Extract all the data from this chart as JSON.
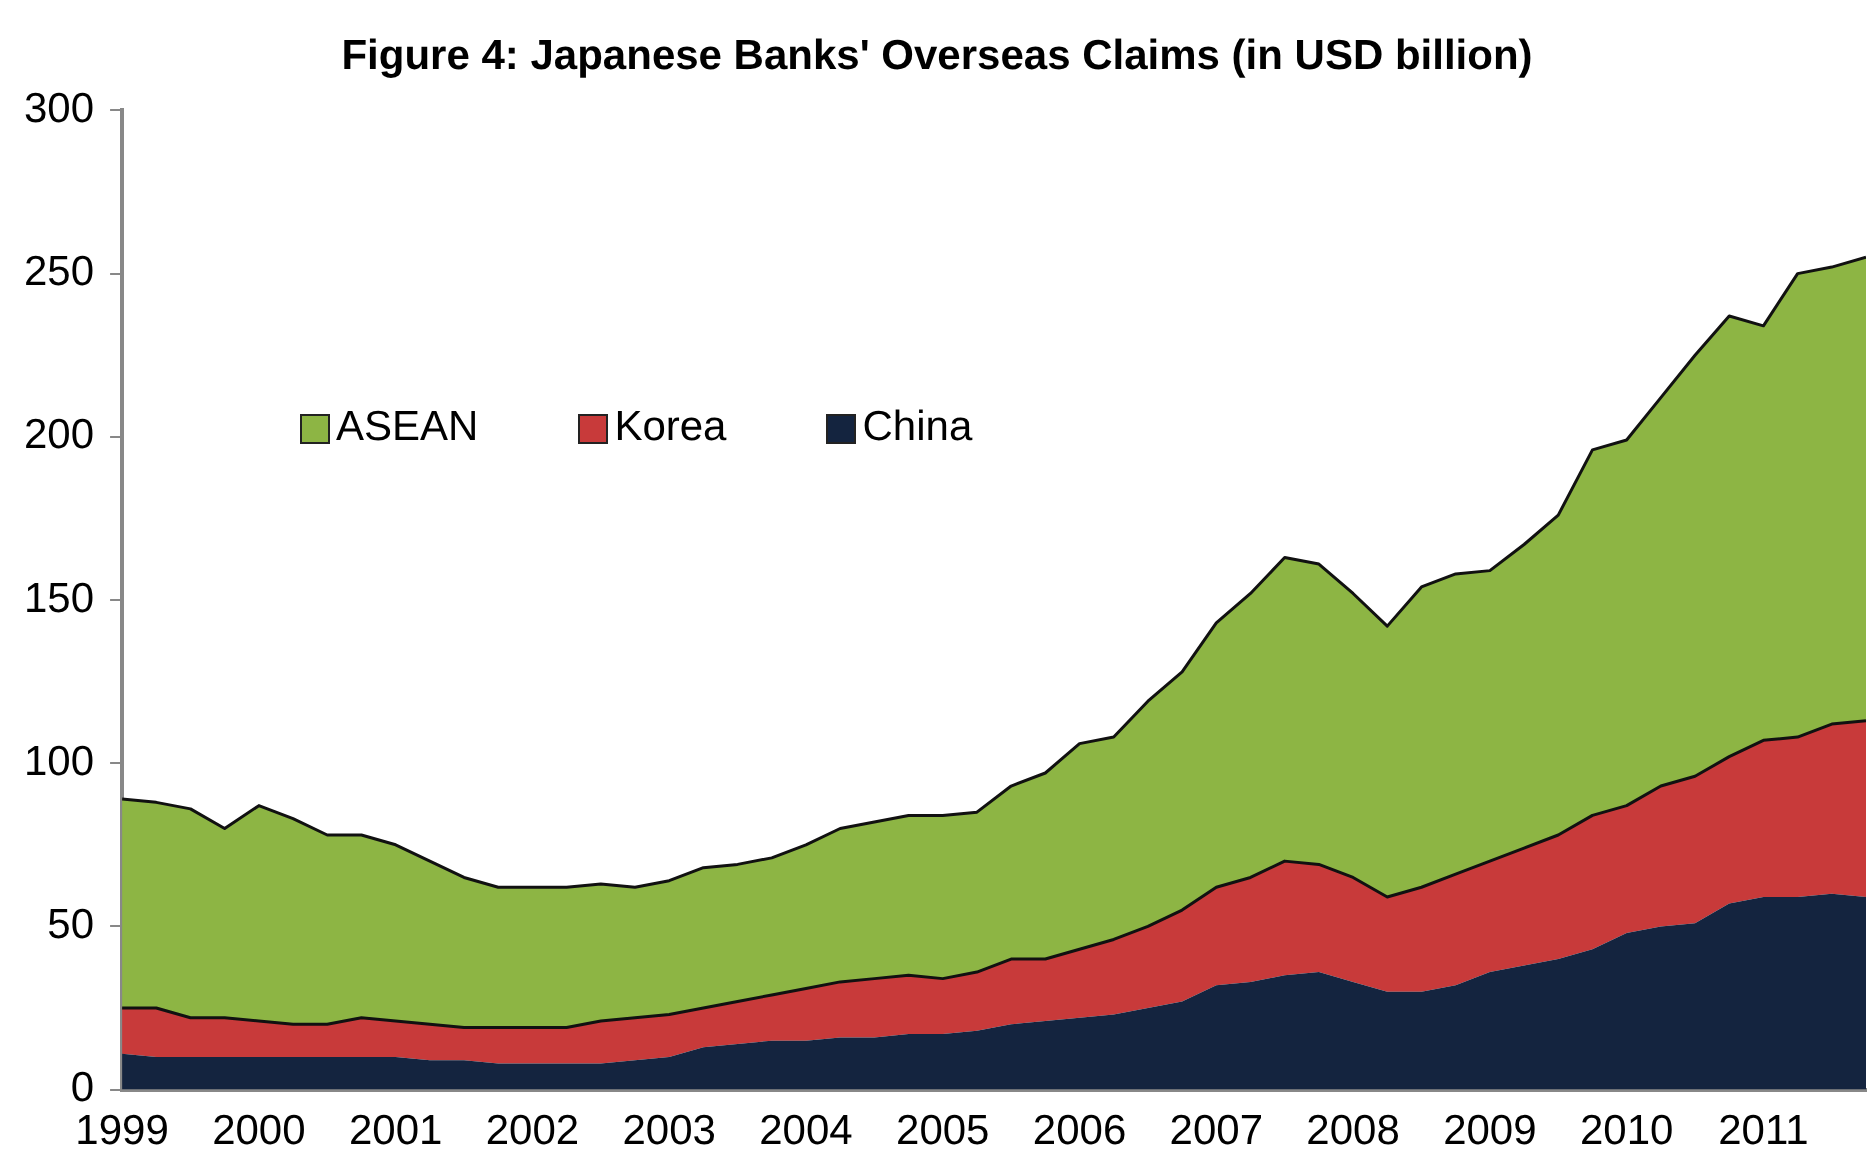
{
  "chart_data": {
    "type": "area",
    "title": "Figure 4: Japanese Banks' Overseas Claims (in USD billion)",
    "stacked": true,
    "legend": "top left",
    "grid": false,
    "x": [
      1999,
      1999.25,
      1999.5,
      1999.75,
      2000,
      2000.25,
      2000.5,
      2000.75,
      2001,
      2001.25,
      2001.5,
      2001.75,
      2002,
      2002.25,
      2002.5,
      2002.75,
      2003,
      2003.25,
      2003.5,
      2003.75,
      2004,
      2004.25,
      2004.5,
      2004.75,
      2005,
      2005.25,
      2005.5,
      2005.75,
      2006,
      2006.25,
      2006.5,
      2006.75,
      2007,
      2007.25,
      2007.5,
      2007.75,
      2008,
      2008.25,
      2008.5,
      2008.75,
      2009,
      2009.25,
      2009.5,
      2009.75,
      2010,
      2010.25,
      2010.5,
      2010.75,
      2011,
      2011.25,
      2011.5,
      2011.75
    ],
    "xlim": [
      1999,
      2011.75
    ],
    "xticks": [
      1999,
      2000,
      2001,
      2002,
      2003,
      2004,
      2005,
      2006,
      2007,
      2008,
      2009,
      2010,
      2011
    ],
    "ylim": [
      0,
      300
    ],
    "yticks": [
      0,
      50,
      100,
      150,
      200,
      250,
      300
    ],
    "series": [
      {
        "name": "China",
        "color": "#14243f",
        "values": [
          11,
          10,
          10,
          10,
          10,
          10,
          10,
          10,
          10,
          9,
          9,
          8,
          8,
          8,
          8,
          9,
          10,
          13,
          14,
          15,
          15,
          16,
          16,
          17,
          17,
          18,
          20,
          21,
          22,
          23,
          25,
          27,
          32,
          33,
          35,
          36,
          33,
          30,
          30,
          32,
          36,
          38,
          40,
          43,
          48,
          50,
          51,
          57,
          59,
          59,
          60,
          59
        ]
      },
      {
        "name": "Korea",
        "color": "#c83a3a",
        "values": [
          14,
          15,
          12,
          12,
          11,
          10,
          10,
          12,
          11,
          11,
          10,
          11,
          11,
          11,
          13,
          13,
          13,
          12,
          13,
          14,
          16,
          17,
          18,
          18,
          17,
          18,
          20,
          19,
          21,
          23,
          25,
          28,
          30,
          32,
          35,
          33,
          32,
          29,
          32,
          34,
          34,
          36,
          38,
          41,
          39,
          43,
          45,
          45,
          48,
          49,
          52,
          54
        ]
      },
      {
        "name": "ASEAN",
        "color": "#8db544",
        "values": [
          64,
          63,
          64,
          58,
          66,
          63,
          58,
          56,
          54,
          50,
          46,
          43,
          43,
          43,
          42,
          40,
          41,
          43,
          42,
          42,
          44,
          47,
          48,
          49,
          50,
          49,
          53,
          57,
          63,
          62,
          69,
          73,
          81,
          87,
          93,
          92,
          87,
          83,
          92,
          92,
          89,
          93,
          98,
          112,
          112,
          119,
          129,
          135,
          127,
          142,
          140,
          142
        ]
      }
    ]
  }
}
